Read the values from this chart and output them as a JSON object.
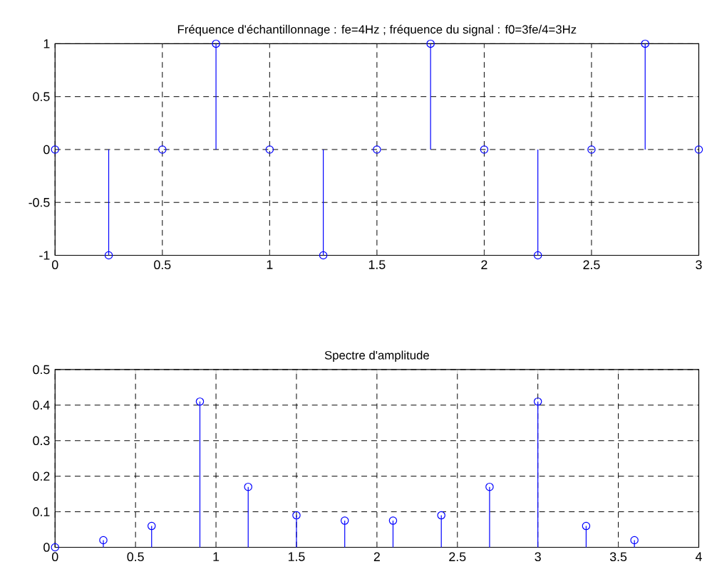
{
  "chart_data": [
    {
      "type": "lollipop",
      "title": "Fréquence d'échantillonnage : fe=4Hz ; fréquence du signal : f0=3fe/4=3Hz",
      "x": [
        0,
        0.25,
        0.5,
        0.75,
        1,
        1.25,
        1.5,
        1.75,
        2,
        2.25,
        2.5,
        2.75,
        3
      ],
      "values": [
        0,
        -1,
        0,
        1,
        0,
        -1,
        0,
        1,
        0,
        -1,
        0,
        1,
        0
      ],
      "color": "#0000ff",
      "marker": "circle",
      "grid": true,
      "xlim": [
        0,
        3
      ],
      "ylim": [
        -1,
        1
      ],
      "xticks": [
        0,
        0.5,
        1,
        1.5,
        2,
        2.5,
        3
      ],
      "yticks": [
        -1,
        -0.5,
        0,
        0.5,
        1
      ]
    },
    {
      "type": "lollipop",
      "title": "Spectre d'amplitude",
      "x": [
        0,
        0.3,
        0.6,
        0.9,
        1.2,
        1.5,
        1.8,
        2.1,
        2.4,
        2.7,
        3,
        3.3,
        3.6
      ],
      "values": [
        0,
        0.02,
        0.06,
        0.41,
        0.17,
        0.09,
        0.075,
        0.075,
        0.09,
        0.17,
        0.41,
        0.06,
        0.02
      ],
      "color": "#0000ff",
      "marker": "circle",
      "grid": true,
      "xlim": [
        0,
        4
      ],
      "ylim": [
        0,
        0.5
      ],
      "xticks": [
        0,
        0.5,
        1,
        1.5,
        2,
        2.5,
        3,
        3.5,
        4
      ],
      "yticks": [
        0,
        0.1,
        0.2,
        0.3,
        0.4,
        0.5
      ]
    }
  ]
}
